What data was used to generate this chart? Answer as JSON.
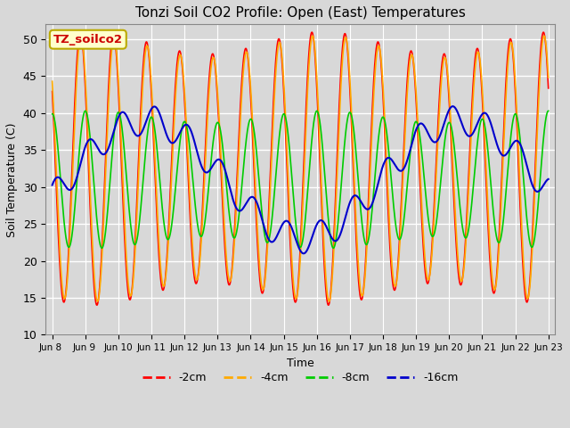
{
  "title": "Tonzi Soil CO2 Profile: Open (East) Temperatures",
  "xlabel": "Time",
  "ylabel": "Soil Temperature (C)",
  "ylim": [
    10,
    52
  ],
  "background_color": "#d8d8d8",
  "plot_bg": "#d8d8d8",
  "legend_box_label": "TZ_soilco2",
  "legend_box_color": "#ffffcc",
  "legend_box_edge": "#bbaa00",
  "series": [
    {
      "label": "-2cm",
      "color": "#ff0000"
    },
    {
      "label": "-4cm",
      "color": "#ffaa00"
    },
    {
      "label": "-8cm",
      "color": "#00cc00"
    },
    {
      "label": "-16cm",
      "color": "#0000cc"
    }
  ],
  "xtick_labels": [
    "Jun 8",
    "Jun 9",
    "Jun 10",
    "Jun 11",
    "Jun 12",
    "Jun 13",
    "Jun 14",
    "Jun 15",
    "Jun 16",
    "Jun 17",
    "Jun 18",
    "Jun 19",
    "Jun 20",
    "Jun 21",
    "Jun 22",
    "Jun 23"
  ],
  "ytick_values": [
    10,
    15,
    20,
    25,
    30,
    35,
    40,
    45,
    50
  ],
  "num_days": 15
}
